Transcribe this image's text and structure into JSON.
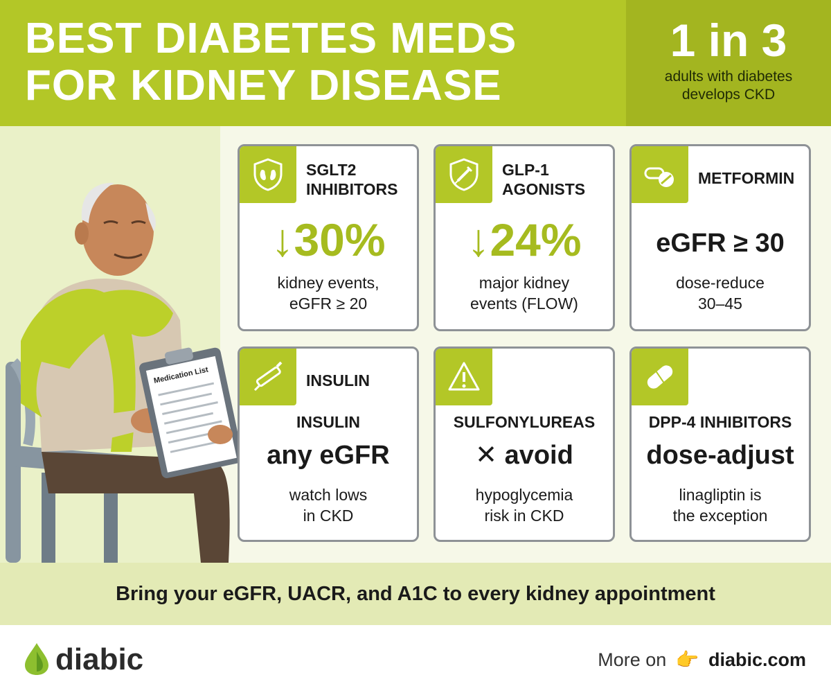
{
  "header": {
    "title_line1": "BEST DIABETES MEDS",
    "title_line2": "FOR KIDNEY DISEASE",
    "stat_big": "1 in 3",
    "stat_small": "adults with diabetes develops CKD"
  },
  "illustration": {
    "clipboard_title": "Medication List"
  },
  "cards": [
    {
      "label_line1": "SGLT2",
      "label_line2": "INHIBITORS",
      "icon": "kidney-shield-icon",
      "big": "↓30%",
      "desc_line1": "kidney events,",
      "desc_line2": "eGFR ≥ 20"
    },
    {
      "label_line1": "GLP-1",
      "label_line2": "AGONISTS",
      "icon": "syringe-shield-icon",
      "big": "↓24%",
      "desc_line1": "major kidney",
      "desc_line2": "events (FLOW)"
    },
    {
      "label": "METFORMIN",
      "icon": "pills-icon",
      "big": "eGFR ≥ 30",
      "desc_line1": "dose-reduce",
      "desc_line2": "30–45"
    },
    {
      "label": "INSULIN",
      "icon": "insulin-pen-icon",
      "subhead": "INSULIN",
      "big": "any eGFR",
      "desc_line1": "watch lows",
      "desc_line2": "in CKD"
    },
    {
      "icon": "warning-icon",
      "subhead": "SULFONYLUREAS",
      "big": "✕ avoid",
      "desc_line1": "hypoglycemia",
      "desc_line2": "risk in CKD"
    },
    {
      "icon": "capsule-icon",
      "subhead": "DPP-4 INHIBITORS",
      "big": "dose-adjust",
      "desc_line1": "linagliptin is",
      "desc_line2": "the exception"
    }
  ],
  "tip": "Bring your eGFR, UACR, and A1C to every kidney appointment",
  "footer": {
    "brand": "diabic",
    "more_prefix": "More on",
    "site": "diabic.com"
  },
  "colors": {
    "accent": "#b3c727",
    "accent_dark": "#a3b520",
    "big_number": "#a6bb1f",
    "tip_bg": "#e3eab5"
  }
}
